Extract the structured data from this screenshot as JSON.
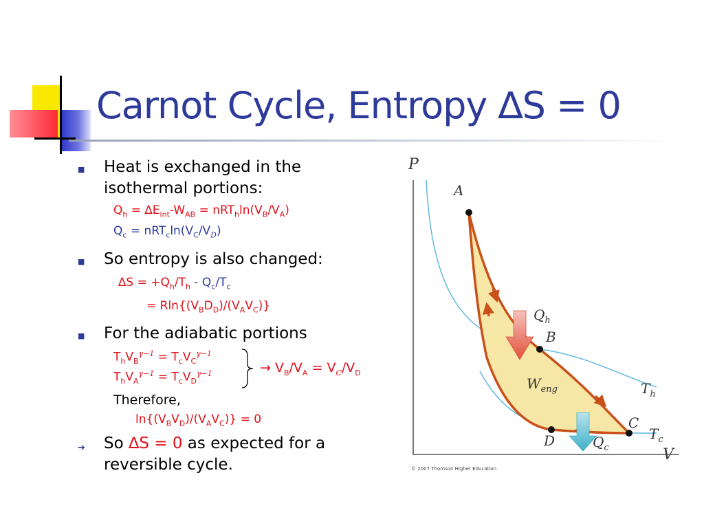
{
  "slide": {
    "title": "Carnot Cycle, Entropy ∆S = 0",
    "colors": {
      "title": "#2d3a9a",
      "accent_red": "#e0101a",
      "bullet": "#2d3a9a",
      "arrow_fill": "#f7e7a6",
      "arrow_stroke": "#c9501a",
      "isotherm": "#5fb8e0"
    }
  },
  "bullets": [
    {
      "text_line1": "Heat is exchanged in the",
      "text_line2": "isothermal portions:"
    },
    {
      "text": "So entropy is also changed:"
    },
    {
      "text": "For the adiabatic portions"
    },
    {
      "prefix": "So ",
      "highlight": "∆S = 0",
      "rest_line1": " as expected for a",
      "line2": "reversible cycle."
    }
  ],
  "equations": {
    "qh": {
      "a": "Q",
      "a_sub": "h",
      "b": " = ∆E",
      "b_sub": "int",
      "c": "-W",
      "c_sub": "AB",
      "d": " = nRT",
      "d_sub": "h",
      "e": "ln(V",
      "e_sub": "B",
      "f": "/V",
      "f_sub": "A",
      "g": ")"
    },
    "qc": {
      "a": "Q",
      "a_sub": "c",
      "b": " = nRT",
      "b_sub": "c",
      "c": "ln(V",
      "c_sub": "C",
      "d": "/V",
      "d_sub": "D",
      "e": ")"
    },
    "ds1": {
      "a": "∆S",
      "b": "  = +Q",
      "b_sub": "h",
      "c": "/T",
      "c_sub": "h",
      "d": " - ",
      "e": "Q",
      "e_sub": "c",
      "f": "/T",
      "f_sub": "c"
    },
    "ds2": {
      "a": "=   Rln{(V",
      "a_sub": "B",
      "b": "D",
      "b_sub": "D",
      "c": ")/(V",
      "c_sub": "A",
      "d": "V",
      "d_sub": "C",
      "e": ")}"
    },
    "ad1": {
      "a": "T",
      "a_sub": "h",
      "b": "V",
      "b_sub": "B",
      "b_sup": "γ−1",
      "c": " = T",
      "c_sub": "c",
      "d": "V",
      "d_sub": "C",
      "d_sup": "γ−1"
    },
    "ad2": {
      "a": "T",
      "a_sub": "h",
      "b": "V",
      "b_sub": "A",
      "b_sup": "γ−1",
      "c": " = T",
      "c_sub": "c",
      "d": "V",
      "d_sub": "D",
      "d_sup": "γ−1"
    },
    "ratio": {
      "a": "→ V",
      "a_sub": "B",
      "b": "/V",
      "b_sub": "A",
      "c": " = V",
      "c_sub": "C",
      "d": "/V",
      "d_sub": "D"
    },
    "therefore": "Therefore,",
    "lnres": {
      "a": "ln{(V",
      "a_sub": "B",
      "b": "V",
      "b_sub": "D",
      "c": ")/(V",
      "c_sub": "A",
      "d": "V",
      "d_sub": "C",
      "e": ")} = 0"
    }
  },
  "diagram": {
    "axis_p": "P",
    "axis_v": "V",
    "point_a": "A",
    "point_b": "B",
    "point_c": "C",
    "point_d": "D",
    "qh": "Q",
    "qh_sub": "h",
    "qc": "Q",
    "qc_sub": "c",
    "weng": "W",
    "weng_sub": "eng",
    "th": "T",
    "th_sub": "h",
    "tc": "T",
    "tc_sub": "c",
    "copyright": "© 2007 Thomson Higher Education"
  }
}
